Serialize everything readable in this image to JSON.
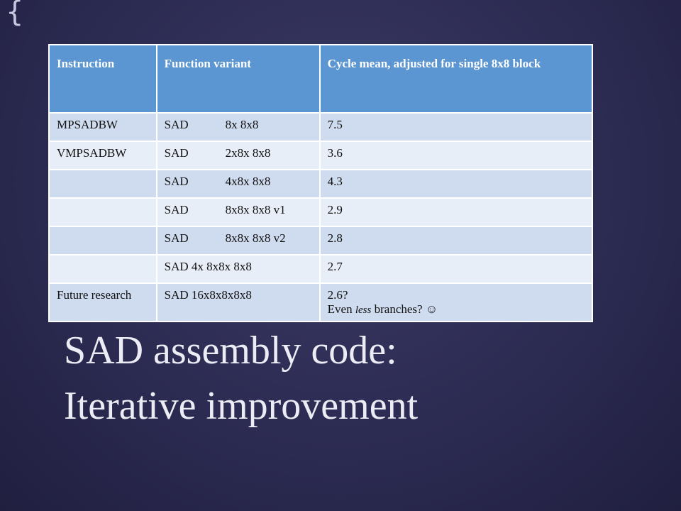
{
  "table": {
    "header": [
      "Instruction",
      "Function variant",
      "Cycle mean, adjusted for single 8x8 block"
    ],
    "rows": [
      [
        "MPSADBW",
        [
          "SAD",
          "8x 8x8"
        ],
        "7.5"
      ],
      [
        "VMPSADBW",
        [
          "SAD",
          "2x8x 8x8"
        ],
        "3.6"
      ],
      [
        null,
        [
          "SAD",
          "4x8x 8x8"
        ],
        "4.3"
      ],
      [
        null,
        [
          "SAD",
          "8x8x 8x8 v1"
        ],
        "2.9"
      ],
      [
        null,
        [
          "SAD",
          "8x8x 8x8 v2"
        ],
        "2.8"
      ],
      [
        null,
        "SAD 4x 8x8x 8x8",
        "2.7"
      ],
      [
        "Future research",
        "SAD 16x8x8x8x8",
        [
          "2.6?",
          "Even",
          "less",
          "branches? ☺"
        ]
      ]
    ]
  },
  "title": [
    "SAD assembly code:",
    "Iterative improvement"
  ]
}
